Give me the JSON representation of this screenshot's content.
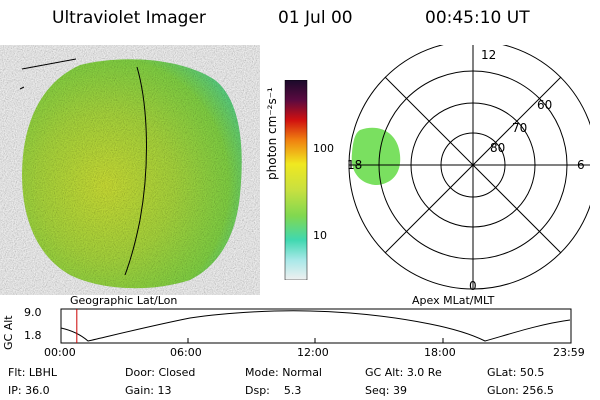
{
  "header": {
    "title": "Ultraviolet Imager",
    "date": "01 Jul 00",
    "time": "00:45:10 UT"
  },
  "left_panel": {
    "caption": "Geographic Lat/Lon"
  },
  "colorbar": {
    "unit_label": "photon cm⁻²s⁻¹",
    "tick_100": "100",
    "tick_10": "10"
  },
  "polar_plot": {
    "caption": "Apex MLat/MLT",
    "mlt_labels": {
      "top": "12",
      "right": "6",
      "bottom": "0",
      "left": "18"
    },
    "lat_labels": [
      "60",
      "70",
      "80"
    ]
  },
  "altitude_plot": {
    "ylabel": "GC Alt",
    "yticks": [
      "9.0",
      "1.8"
    ],
    "xticks": [
      "00:00",
      "06:00",
      "12:00",
      "18:00",
      "23:59"
    ],
    "marker_time_fraction": 0.031
  },
  "status": {
    "row1": [
      {
        "key": "Flt:",
        "value": "LBHL"
      },
      {
        "key": "Door:",
        "value": "Closed"
      },
      {
        "key": "Mode:",
        "value": "Normal"
      },
      {
        "key": "GC Alt:",
        "value": "3.0 Re"
      },
      {
        "key": "GLat:",
        "value": "50.5"
      }
    ],
    "row2": [
      {
        "key": "IP:",
        "value": "36.0"
      },
      {
        "key": "Gain:",
        "value": "13"
      },
      {
        "key": "Dsp:",
        "value": "5.3"
      },
      {
        "key": "Seq:",
        "value": "39"
      },
      {
        "key": "GLon:",
        "value": "256.5"
      }
    ]
  },
  "colors": {
    "disk_main": "#a8e040",
    "disk_edge": "#58d888",
    "oval": "#6de070",
    "marker": "#cc0000"
  }
}
